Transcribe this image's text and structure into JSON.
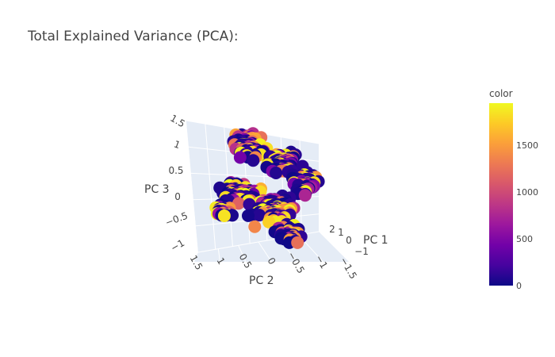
{
  "chart_data": {
    "type": "scatter",
    "subtype": "3d",
    "title": "Total Explained Variance (PCA):",
    "axes": {
      "x": {
        "label": "PC 1",
        "ticks": [
          "2",
          "1",
          "0",
          "−1"
        ]
      },
      "y": {
        "label": "PC 2",
        "ticks": [
          "1.5",
          "1",
          "0.5",
          "0",
          "−0.5",
          "−1",
          "−1.5"
        ]
      },
      "z": {
        "label": "PC 3",
        "ticks": [
          "1.5",
          "1",
          "0.5",
          "0",
          "−0.5",
          "−1"
        ]
      }
    },
    "colorbar": {
      "title": "color",
      "range": [
        0,
        1950
      ],
      "ticks": [
        "0",
        "500",
        "1000",
        "1500"
      ],
      "colorscale": [
        "#0d0887",
        "#46039f",
        "#7201a8",
        "#9c179e",
        "#bd3786",
        "#d8576b",
        "#ed7953",
        "#fb9f3a",
        "#fdca26",
        "#f0f921"
      ]
    },
    "points": {
      "count": 480,
      "color_range": [
        0,
        1950
      ]
    },
    "grid": true
  }
}
